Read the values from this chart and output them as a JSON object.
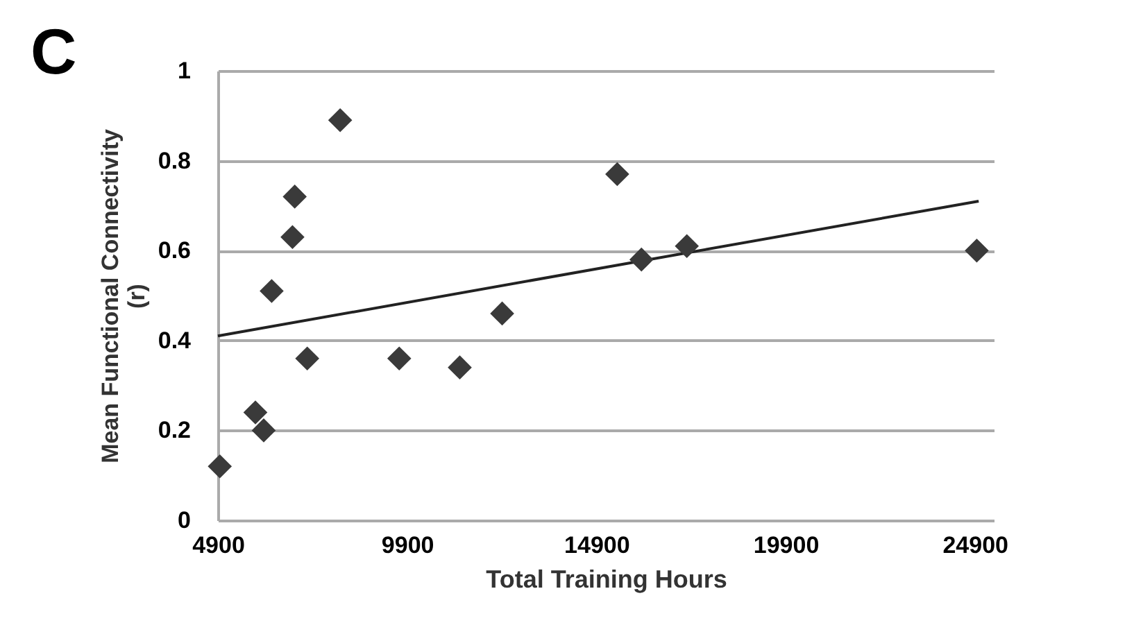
{
  "chart_data": {
    "type": "scatter",
    "xlabel": "Total Training Hours",
    "ylabel": "Mean Functional Connectivity (r)",
    "annotations": [
      "C"
    ],
    "x": [
      4950,
      5890,
      6110,
      6320,
      6870,
      6930,
      7260,
      8130,
      9690,
      11290,
      12410,
      15450,
      16090,
      17290,
      24950
    ],
    "series": [
      {
        "color": "#3a3a3a",
        "values": [
          0.12,
          0.24,
          0.2,
          0.51,
          0.63,
          0.72,
          0.36,
          0.89,
          0.36,
          0.34,
          0.46,
          0.77,
          0.58,
          0.61,
          0.6
        ]
      },
      {
        "type": "line",
        "marker": "none",
        "color": "#222222",
        "x": [
          4900,
          25000
        ],
        "values": [
          0.41,
          0.71
        ]
      }
    ],
    "xlim": [
      4900,
      25400
    ],
    "xticks": [
      4900,
      9900,
      14900,
      19900,
      24900
    ],
    "ylim": [
      0,
      1
    ],
    "yticks": [
      0,
      0.2,
      0.4,
      0.6,
      0.8,
      1
    ],
    "grid": "y",
    "marker": "diamond",
    "line_style": "solid"
  }
}
